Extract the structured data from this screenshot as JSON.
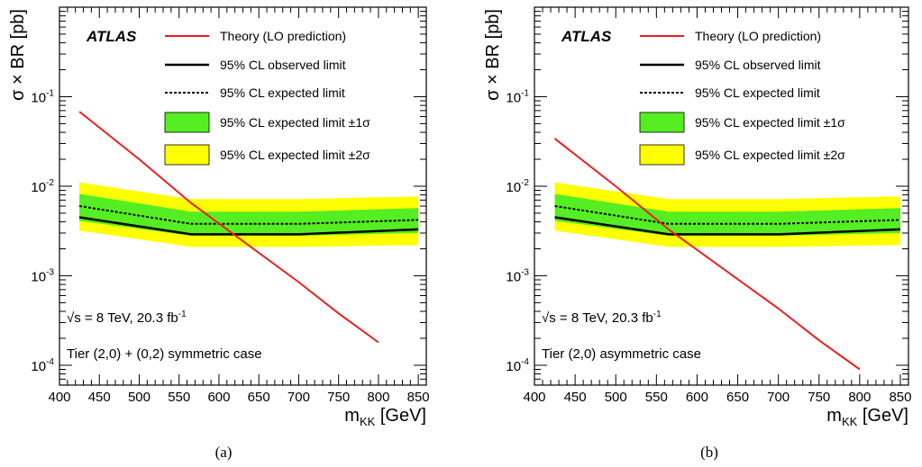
{
  "common": {
    "ylabel": "σ × BR [pb]",
    "xlabel_main": "m",
    "xlabel_sub": "KK",
    "xlabel_unit": " [GeV]",
    "atlas": "ATLAS",
    "energy_main": "√s = 8 TeV, 20.3 fb",
    "energy_sup": "-1",
    "legend": {
      "theory": "Theory (LO prediction)",
      "observed": "95% CL observed limit",
      "expected": "95% CL expected limit",
      "one_sigma": "95% CL expected limit ±1σ",
      "two_sigma": "95% CL expected limit ±2σ"
    },
    "colors": {
      "theory": "#e8201e",
      "one_sigma": "#55ee22",
      "two_sigma": "#ffff00"
    }
  },
  "chart_data": [
    {
      "type": "line",
      "caption": "(a)",
      "note": "Tier (2,0) + (0,2) symmetric case",
      "xlabel": "m_KK [GeV]",
      "ylabel": "σ × BR [pb]",
      "xlim": [
        400,
        860
      ],
      "ylim": [
        6e-05,
        1
      ],
      "yscale": "log",
      "xticks": [
        400,
        450,
        500,
        550,
        600,
        650,
        700,
        750,
        800,
        850
      ],
      "yticks": [
        {
          "v": 0.0001,
          "m": "10",
          "e": "-4"
        },
        {
          "v": 0.001,
          "m": "10",
          "e": "-3"
        },
        {
          "v": 0.01,
          "m": "10",
          "e": "-2"
        },
        {
          "v": 0.1,
          "m": "10",
          "e": "-1"
        }
      ],
      "mass": [
        425,
        565,
        700,
        850
      ],
      "observed": [
        0.0045,
        0.0029,
        0.0029,
        0.0033
      ],
      "expected": [
        0.006,
        0.0038,
        0.0038,
        0.0042
      ],
      "one_sigma_low": [
        0.0041,
        0.0028,
        0.0028,
        0.003
      ],
      "one_sigma_high": [
        0.0082,
        0.0052,
        0.0052,
        0.0057
      ],
      "two_sigma_low": [
        0.0032,
        0.0021,
        0.0021,
        0.0022
      ],
      "two_sigma_high": [
        0.011,
        0.0072,
        0.0072,
        0.0077
      ],
      "theory_x": [
        425,
        500,
        565,
        700,
        750,
        800
      ],
      "theory_y": [
        0.068,
        0.02,
        0.0065,
        0.00085,
        0.00038,
        0.00018
      ]
    },
    {
      "type": "line",
      "caption": "(b)",
      "note": "Tier (2,0) asymmetric case",
      "xlabel": "m_KK [GeV]",
      "ylabel": "σ × BR [pb]",
      "xlim": [
        400,
        860
      ],
      "ylim": [
        6e-05,
        1
      ],
      "yscale": "log",
      "xticks": [
        400,
        450,
        500,
        550,
        600,
        650,
        700,
        750,
        800,
        850
      ],
      "yticks": [
        {
          "v": 0.0001,
          "m": "10",
          "e": "-4"
        },
        {
          "v": 0.001,
          "m": "10",
          "e": "-3"
        },
        {
          "v": 0.01,
          "m": "10",
          "e": "-2"
        },
        {
          "v": 0.1,
          "m": "10",
          "e": "-1"
        }
      ],
      "mass": [
        425,
        565,
        700,
        850
      ],
      "observed": [
        0.0045,
        0.0029,
        0.0029,
        0.0033
      ],
      "expected": [
        0.006,
        0.0038,
        0.0038,
        0.0042
      ],
      "one_sigma_low": [
        0.0041,
        0.0028,
        0.0028,
        0.003
      ],
      "one_sigma_high": [
        0.0082,
        0.0052,
        0.0052,
        0.0057
      ],
      "two_sigma_low": [
        0.0032,
        0.0021,
        0.0021,
        0.0022
      ],
      "two_sigma_high": [
        0.011,
        0.0072,
        0.0072,
        0.0077
      ],
      "theory_x": [
        425,
        500,
        565,
        700,
        750,
        800
      ],
      "theory_y": [
        0.034,
        0.01,
        0.0033,
        0.00043,
        0.00019,
        9e-05
      ]
    }
  ]
}
